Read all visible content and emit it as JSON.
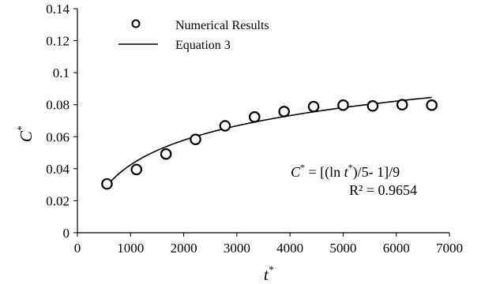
{
  "chart_data": {
    "type": "scatter",
    "title": "",
    "xlabel": "t",
    "xlabel_superscript": "*",
    "ylabel": "C",
    "ylabel_superscript": "*",
    "xlim": [
      0,
      7000
    ],
    "ylim": [
      0,
      0.14
    ],
    "x_ticks": [
      0,
      1000,
      2000,
      3000,
      4000,
      5000,
      6000,
      7000
    ],
    "y_ticks": [
      0,
      0.02,
      0.04,
      0.06,
      0.08,
      0.1,
      0.12,
      0.14
    ],
    "x_tick_labels": [
      "0",
      "1000",
      "2000",
      "3000",
      "4000",
      "5000",
      "6000",
      "7000"
    ],
    "y_tick_labels": [
      "0",
      "0.02",
      "0.04",
      "0.06",
      "0.08",
      "0.1",
      "0.12",
      "0.14"
    ],
    "grid": false,
    "legend_position": "top-left",
    "series": [
      {
        "name": "Numerical Results",
        "kind": "markers",
        "marker": "open-circle",
        "x": [
          556,
          1111,
          1667,
          2222,
          2778,
          3333,
          3889,
          4444,
          5000,
          5556,
          6111,
          6667
        ],
        "y": [
          0.0305,
          0.0395,
          0.0492,
          0.0583,
          0.0668,
          0.0723,
          0.0757,
          0.0788,
          0.0797,
          0.0792,
          0.08,
          0.0797
        ]
      },
      {
        "name": "Equation 3",
        "kind": "line",
        "x_range": [
          556,
          6667
        ],
        "formula": "(ln(t)/5 - 1)/9"
      }
    ],
    "annotations": {
      "equation_parts": [
        "C",
        "*",
        " = [(ln ",
        "t",
        "*",
        ")/5- 1]/9"
      ],
      "r_squared": "R² = 0.9654"
    }
  },
  "colors": {
    "line": "#000000",
    "marker_stroke": "#000000",
    "marker_fill": "#ffffff",
    "axis": "#000000"
  }
}
